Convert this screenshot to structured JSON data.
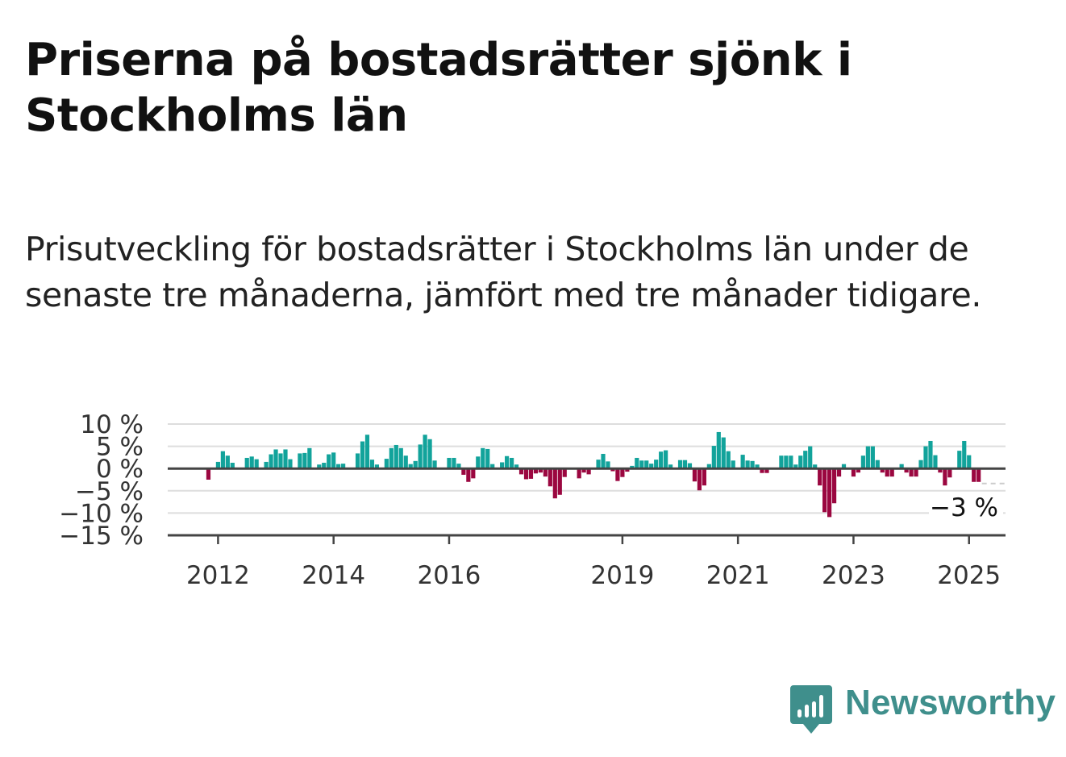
{
  "title": "Priserna på bostadsrätter sjönk i Stockholms län",
  "subtitle": "Prisutveckling för bostadsrätter i Stockholms län under de senaste tre månaderna, jämfört med tre månader tidigare.",
  "brand": {
    "name": "Newsworthy",
    "color": "#3f8f8c"
  },
  "colors": {
    "positive": "#12a39b",
    "negative": "#9b0740",
    "grid": "#dddddd",
    "axis": "#444444"
  },
  "chart_data": {
    "type": "bar",
    "x_start": "2011-10",
    "ylim": [
      -15,
      10
    ],
    "y_ticks": [
      10,
      5,
      0,
      -5,
      -10,
      -15
    ],
    "y_tick_labels": [
      "10 %",
      "5 %",
      "0 %",
      "−5 %",
      "−10 %",
      "−15 %"
    ],
    "x_ticks": [
      "2012",
      "2014",
      "2016",
      "2019",
      "2021",
      "2023",
      "2025"
    ],
    "x_tick_months": [
      "2012-01",
      "2014-01",
      "2016-01",
      "2019-01",
      "2021-01",
      "2023-01",
      "2025-01"
    ],
    "values": [
      0,
      -2.5,
      0,
      1.5,
      3.9,
      2.9,
      1.3,
      0,
      0,
      2.4,
      2.7,
      2.1,
      0,
      1.5,
      3.2,
      4.3,
      3.4,
      4.3,
      2.1,
      0,
      3.4,
      3.5,
      4.6,
      0,
      0.9,
      1.3,
      3.2,
      3.6,
      1.0,
      1.1,
      0,
      0,
      3.4,
      6.1,
      7.6,
      2.0,
      0.9,
      0,
      2.2,
      4.6,
      5.3,
      4.6,
      2.9,
      1.0,
      1.7,
      5.4,
      7.6,
      6.6,
      1.8,
      0,
      0,
      2.4,
      2.4,
      1.1,
      -1.4,
      -3.0,
      -2.2,
      2.7,
      4.6,
      4.4,
      1.0,
      0,
      1.4,
      2.8,
      2.4,
      0.9,
      -1.3,
      -2.4,
      -2.3,
      -1.1,
      -0.9,
      -1.8,
      -4.0,
      -6.7,
      -5.9,
      -1.9,
      0,
      0,
      -2.2,
      -0.9,
      -1.3,
      0,
      2.0,
      3.3,
      1.6,
      -0.6,
      -2.8,
      -1.9,
      -0.7,
      0.6,
      2.4,
      1.8,
      1.8,
      1.1,
      2.0,
      3.8,
      4.1,
      0.9,
      0,
      1.9,
      1.9,
      1.2,
      -2.9,
      -4.9,
      -3.8,
      1.0,
      5.1,
      8.2,
      7.0,
      3.9,
      1.8,
      0,
      3.1,
      1.8,
      1.7,
      0.9,
      -1.0,
      -1.0,
      0,
      0,
      2.9,
      2.9,
      2.9,
      0.9,
      2.9,
      4.0,
      5.0,
      0.9,
      -3.8,
      -9.8,
      -10.9,
      -7.8,
      -1.8,
      1.0,
      0,
      -1.8,
      -0.9,
      2.9,
      5.0,
      5.0,
      1.9,
      -0.9,
      -1.8,
      -1.8,
      0,
      1.0,
      -0.9,
      -1.8,
      -1.8,
      1.9,
      5.0,
      6.2,
      3.0,
      -0.9,
      -3.8,
      -2.0,
      0,
      4.0,
      6.2,
      3.0,
      -3.0,
      -3.0
    ],
    "annotation": "−3 %",
    "last_value": -3
  }
}
